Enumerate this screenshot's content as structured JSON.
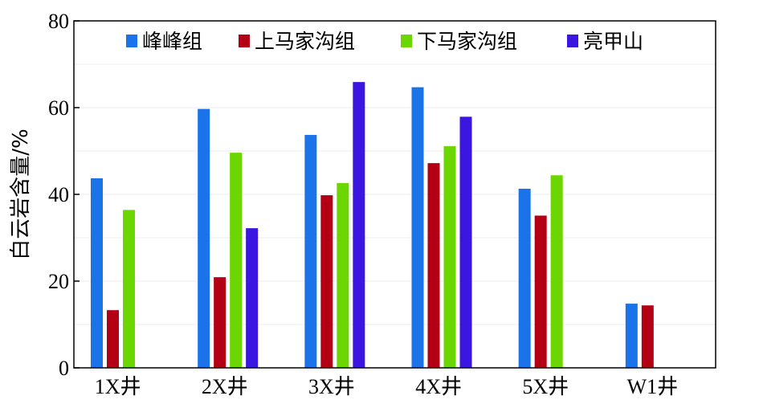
{
  "chart_data": {
    "type": "bar",
    "categories": [
      "1X井",
      "2X井",
      "3X井",
      "4X井",
      "5X井",
      "W1井"
    ],
    "ylabel": "白云岩含量/%",
    "xlabel": "",
    "ylim": [
      0,
      80
    ],
    "yticks": [
      "0",
      "20",
      "40",
      "60",
      "80"
    ],
    "grid": true,
    "legend_position": "top",
    "series": [
      {
        "name": "峰峰组",
        "color": "#1a73e8",
        "values": [
          43.7,
          59.7,
          53.7,
          64.7,
          41.3,
          14.8
        ]
      },
      {
        "name": "上马家沟组",
        "color": "#b30014",
        "values": [
          13.3,
          20.9,
          39.8,
          47.2,
          35.1,
          14.4
        ]
      },
      {
        "name": "下马家沟组",
        "color": "#6cd600",
        "values": [
          36.4,
          49.6,
          42.6,
          51.1,
          44.4,
          null
        ]
      },
      {
        "name": "亮甲山",
        "color": "#3a16e0",
        "values": [
          null,
          32.2,
          65.9,
          57.9,
          null,
          null
        ]
      }
    ]
  }
}
